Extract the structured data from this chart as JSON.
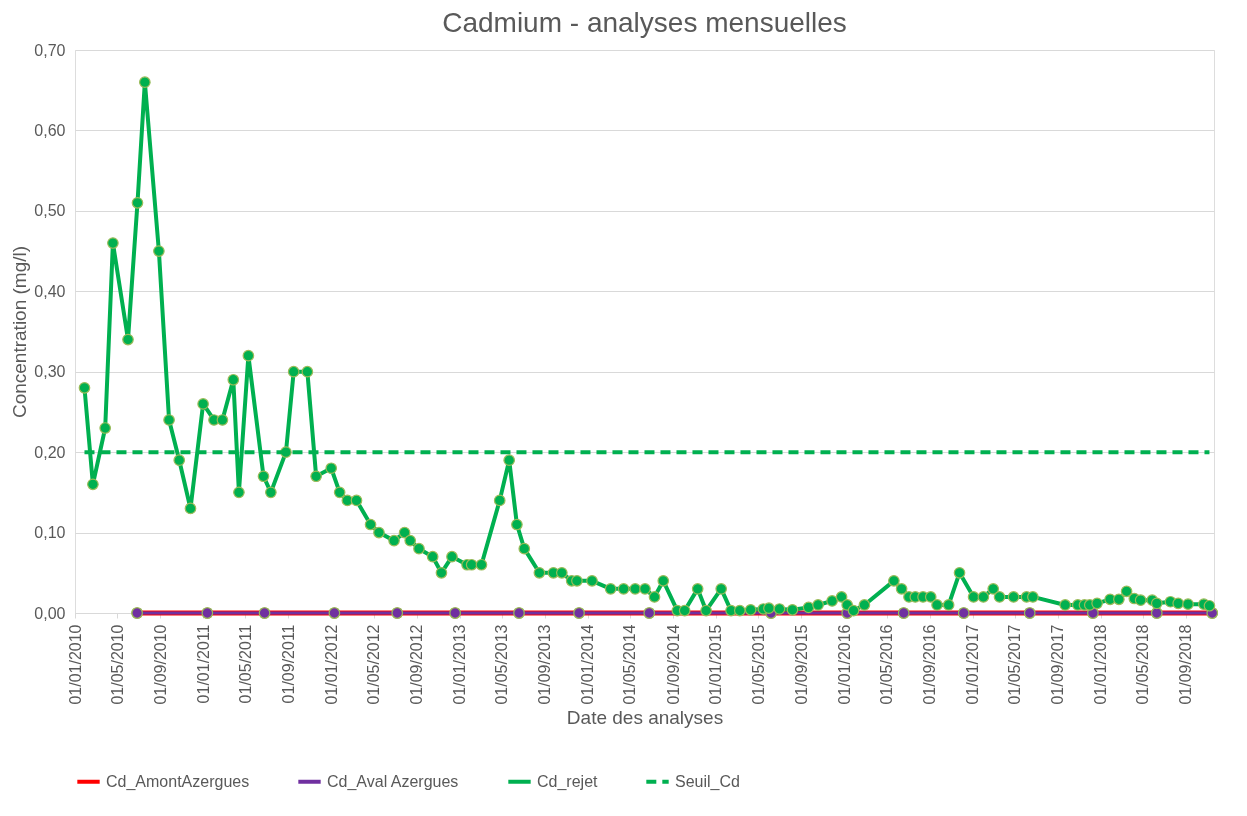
{
  "chart_data": {
    "type": "line",
    "title": "Cadmium - analyses mensuelles",
    "xlabel": "Date des analyses",
    "ylabel": "Concentration (mg/l)",
    "xlim": [
      "2010-01-01",
      "2018-11-20"
    ],
    "xticks": [
      {
        "value": "2010-01-01",
        "label": "01/01/2010"
      },
      {
        "value": "2010-05-01",
        "label": "01/05/2010"
      },
      {
        "value": "2010-09-01",
        "label": "01/09/2010"
      },
      {
        "value": "2011-01-01",
        "label": "01/01/2011"
      },
      {
        "value": "2011-05-01",
        "label": "01/05/2011"
      },
      {
        "value": "2011-09-01",
        "label": "01/09/2011"
      },
      {
        "value": "2012-01-01",
        "label": "01/01/2012"
      },
      {
        "value": "2012-05-01",
        "label": "01/05/2012"
      },
      {
        "value": "2012-09-01",
        "label": "01/09/2012"
      },
      {
        "value": "2013-01-01",
        "label": "01/01/2013"
      },
      {
        "value": "2013-05-01",
        "label": "01/05/2013"
      },
      {
        "value": "2013-09-01",
        "label": "01/09/2013"
      },
      {
        "value": "2014-01-01",
        "label": "01/01/2014"
      },
      {
        "value": "2014-05-01",
        "label": "01/05/2014"
      },
      {
        "value": "2014-09-01",
        "label": "01/09/2014"
      },
      {
        "value": "2015-01-01",
        "label": "01/01/2015"
      },
      {
        "value": "2015-05-01",
        "label": "01/05/2015"
      },
      {
        "value": "2015-09-01",
        "label": "01/09/2015"
      },
      {
        "value": "2016-01-01",
        "label": "01/01/2016"
      },
      {
        "value": "2016-05-01",
        "label": "01/05/2016"
      },
      {
        "value": "2016-09-01",
        "label": "01/09/2016"
      },
      {
        "value": "2017-01-01",
        "label": "01/01/2017"
      },
      {
        "value": "2017-05-01",
        "label": "01/05/2017"
      },
      {
        "value": "2017-09-01",
        "label": "01/09/2017"
      },
      {
        "value": "2018-01-01",
        "label": "01/01/2018"
      },
      {
        "value": "2018-05-01",
        "label": "01/05/2018"
      },
      {
        "value": "2018-09-01",
        "label": "01/09/2018"
      }
    ],
    "ylim": [
      0,
      0.7
    ],
    "yticks": [
      {
        "value": 0,
        "label": "0,00"
      },
      {
        "value": 0.1,
        "label": "0,10"
      },
      {
        "value": 0.2,
        "label": "0,20"
      },
      {
        "value": 0.3,
        "label": "0,30"
      },
      {
        "value": 0.4,
        "label": "0,40"
      },
      {
        "value": 0.5,
        "label": "0,50"
      },
      {
        "value": 0.6,
        "label": "0,60"
      },
      {
        "value": 0.7,
        "label": "0,70"
      }
    ],
    "grid": "y",
    "legend": "bottom",
    "series": [
      {
        "name": "Cd_AmontAzergues",
        "color": "#ff0000",
        "marker": "circle",
        "x": [
          "2010-06-27",
          "2011-01-13",
          "2011-06-25",
          "2012-01-10",
          "2012-07-07",
          "2012-12-19",
          "2013-06-19",
          "2013-12-07",
          "2014-06-25",
          "2015-06-07",
          "2016-01-10",
          "2016-06-19",
          "2016-12-07",
          "2017-06-13",
          "2017-12-10",
          "2018-06-10",
          "2018-11-15"
        ],
        "values": [
          0,
          0,
          0,
          0,
          0,
          0,
          0,
          0,
          0,
          0,
          0,
          0,
          0,
          0,
          0,
          0,
          0
        ]
      },
      {
        "name": "Cd_Aval Azergues",
        "color": "#7030a0",
        "marker": "circle",
        "x": [
          "2010-06-27",
          "2011-01-13",
          "2011-06-25",
          "2012-01-10",
          "2012-07-07",
          "2012-12-19",
          "2013-06-19",
          "2013-12-07",
          "2014-06-25",
          "2015-06-07",
          "2016-01-10",
          "2016-06-19",
          "2016-12-07",
          "2017-06-13",
          "2017-12-10",
          "2018-06-10",
          "2018-11-15"
        ],
        "values": [
          0,
          0,
          0,
          0,
          0,
          0,
          0,
          0,
          0,
          0,
          0,
          0,
          0,
          0,
          0,
          0,
          0
        ]
      },
      {
        "name": "Cd_rejet",
        "color": "#00b050",
        "marker": "circle",
        "x": [
          "2010-01-28",
          "2010-02-21",
          "2010-03-28",
          "2010-04-19",
          "2010-06-01",
          "2010-06-28",
          "2010-07-19",
          "2010-08-28",
          "2010-09-26",
          "2010-10-25",
          "2010-11-26",
          "2011-01-01",
          "2011-02-01",
          "2011-02-25",
          "2011-03-28",
          "2011-04-13",
          "2011-05-10",
          "2011-06-22",
          "2011-07-13",
          "2011-08-25",
          "2011-09-16",
          "2011-10-25",
          "2011-11-19",
          "2012-01-01",
          "2012-01-25",
          "2012-02-16",
          "2012-03-13",
          "2012-04-22",
          "2012-05-16",
          "2012-06-28",
          "2012-07-28",
          "2012-08-13",
          "2012-09-07",
          "2012-10-16",
          "2012-11-10",
          "2012-12-10",
          "2013-01-22",
          "2013-02-04",
          "2013-03-04",
          "2013-04-25",
          "2013-05-22",
          "2013-06-13",
          "2013-07-04",
          "2013-08-16",
          "2013-09-25",
          "2013-10-19",
          "2013-11-16",
          "2013-12-01",
          "2014-01-13",
          "2014-03-07",
          "2014-04-13",
          "2014-05-16",
          "2014-06-13",
          "2014-07-10",
          "2014-08-04",
          "2014-09-13",
          "2014-10-04",
          "2014-11-10",
          "2014-12-04",
          "2015-01-16",
          "2015-02-13",
          "2015-03-10",
          "2015-04-10",
          "2015-05-16",
          "2015-06-01",
          "2015-07-01",
          "2015-08-07",
          "2015-09-22",
          "2015-10-19",
          "2015-11-28",
          "2015-12-25",
          "2016-01-10",
          "2016-01-28",
          "2016-02-28",
          "2016-05-22",
          "2016-06-13",
          "2016-07-04",
          "2016-07-22",
          "2016-08-13",
          "2016-09-04",
          "2016-09-22",
          "2016-10-25",
          "2016-11-25",
          "2017-01-04",
          "2017-02-01",
          "2017-03-01",
          "2017-03-19",
          "2017-04-28",
          "2017-06-04",
          "2017-06-22",
          "2017-09-22",
          "2017-10-28",
          "2017-11-16",
          "2017-12-01",
          "2017-12-22",
          "2018-01-28",
          "2018-02-22",
          "2018-03-16",
          "2018-04-07",
          "2018-04-25",
          "2018-05-28",
          "2018-06-10",
          "2018-07-19",
          "2018-08-10",
          "2018-09-07",
          "2018-10-22",
          "2018-11-07"
        ],
        "values": [
          0.28,
          0.16,
          0.23,
          0.46,
          0.34,
          0.51,
          0.66,
          0.45,
          0.24,
          0.19,
          0.13,
          0.26,
          0.24,
          0.24,
          0.29,
          0.15,
          0.32,
          0.17,
          0.15,
          0.2,
          0.3,
          0.3,
          0.17,
          0.18,
          0.15,
          0.14,
          0.14,
          0.11,
          0.1,
          0.09,
          0.1,
          0.09,
          0.08,
          0.07,
          0.05,
          0.07,
          0.06,
          0.06,
          0.06,
          0.14,
          0.19,
          0.11,
          0.08,
          0.05,
          0.05,
          0.05,
          0.04,
          0.04,
          0.04,
          0.03,
          0.03,
          0.03,
          0.03,
          0.02,
          0.04,
          0.003,
          0.003,
          0.03,
          0.003,
          0.03,
          0.003,
          0.003,
          0.004,
          0.005,
          0.006,
          0.005,
          0.004,
          0.007,
          0.01,
          0.015,
          0.02,
          0.01,
          0.003,
          0.01,
          0.04,
          0.03,
          0.02,
          0.02,
          0.02,
          0.02,
          0.01,
          0.01,
          0.05,
          0.02,
          0.02,
          0.03,
          0.02,
          0.02,
          0.02,
          0.02,
          0.01,
          0.01,
          0.01,
          0.01,
          0.012,
          0.017,
          0.017,
          0.027,
          0.018,
          0.016,
          0.016,
          0.012,
          0.014,
          0.012,
          0.011,
          0.011,
          0.009
        ]
      },
      {
        "name": "Seuil_Cd",
        "color": "#00b050",
        "marker": "none",
        "line_style": "dashed",
        "x": [
          "2010-01-28",
          "2018-11-07"
        ],
        "values": [
          0.2,
          0.2
        ]
      }
    ]
  }
}
